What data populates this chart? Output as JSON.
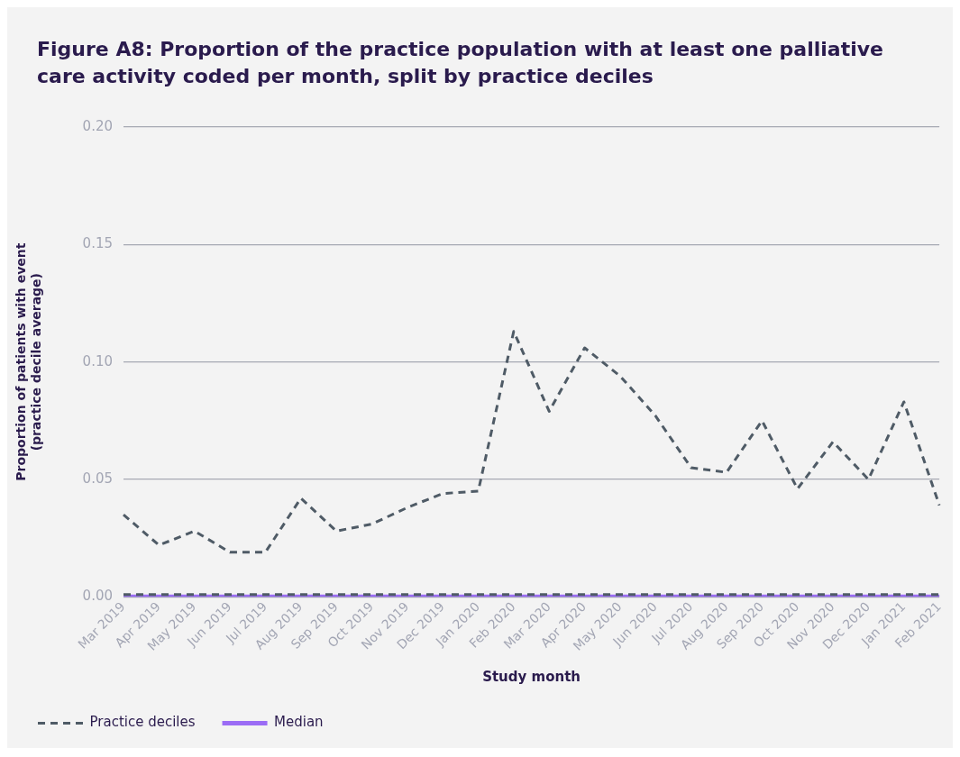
{
  "chart_data": {
    "type": "line",
    "title": "Figure A8: Proportion of the practice population with at least one palliative care activity coded per month, split by practice deciles",
    "xlabel": "Study month",
    "ylabel": "Proportion of patients with event\n(practice decile average)",
    "categories": [
      "Mar 2019",
      "Apr 2019",
      "May 2019",
      "Jun 2019",
      "Jul 2019",
      "Aug 2019",
      "Sep 2019",
      "Oct 2019",
      "Nov 2019",
      "Dec 2019",
      "Jan 2020",
      "Feb 2020",
      "Mar 2020",
      "Apr 2020",
      "May 2020",
      "Jun 2020",
      "Jul 2020",
      "Aug 2020",
      "Sep 2020",
      "Oct 2020",
      "Nov 2020",
      "Dec 2020",
      "Jan 2021",
      "Feb 2021"
    ],
    "series": [
      {
        "name": "Practice deciles",
        "color": "#4f5b66",
        "line_style": "dashed",
        "values": [
          0.035,
          0.022,
          0.028,
          0.019,
          0.019,
          0.042,
          0.028,
          0.031,
          0.038,
          0.044,
          0.045,
          0.113,
          0.079,
          0.106,
          0.094,
          0.077,
          0.055,
          0.053,
          0.075,
          0.046,
          0.066,
          0.05,
          0.083,
          0.039
        ]
      },
      {
        "color": "#4f5b66",
        "line_style": "dashed",
        "values": [
          0.001,
          0.001,
          0.001,
          0.001,
          0.001,
          0.001,
          0.001,
          0.001,
          0.001,
          0.001,
          0.001,
          0.001,
          0.001,
          0.001,
          0.001,
          0.001,
          0.001,
          0.001,
          0.001,
          0.001,
          0.001,
          0.001,
          0.001,
          0.001
        ]
      },
      {
        "name": "Median",
        "color": "#9b6cf5",
        "line_style": "solid",
        "values": [
          0,
          0,
          0,
          0,
          0,
          0,
          0,
          0,
          0,
          0,
          0,
          0,
          0,
          0,
          0,
          0,
          0,
          0,
          0,
          0,
          0,
          0,
          0,
          0
        ]
      }
    ],
    "ylim": [
      0,
      0.2
    ],
    "yticks": [
      {
        "value": 0,
        "label": "0.00"
      },
      {
        "value": 0.05,
        "label": "0.05"
      },
      {
        "value": 0.1,
        "label": "0.10"
      },
      {
        "value": 0.15,
        "label": "0.15"
      },
      {
        "value": 0.2,
        "label": "0.20"
      }
    ],
    "grid": "y",
    "legend": "bottom left",
    "marker": "none"
  }
}
